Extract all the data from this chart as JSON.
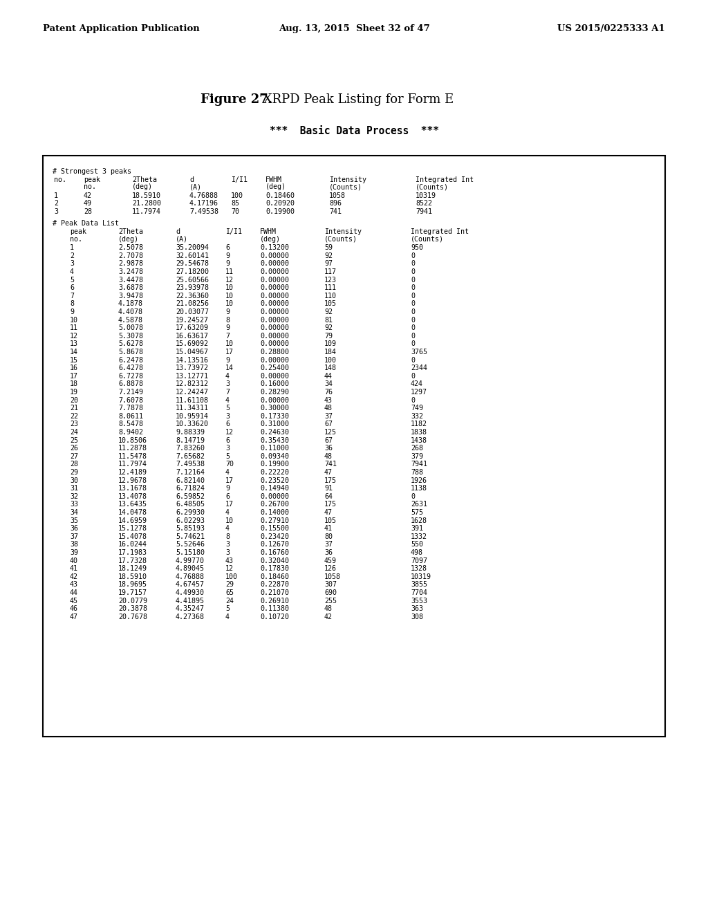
{
  "header_left": "Patent Application Publication",
  "header_mid": "Aug. 13, 2015  Sheet 32 of 47",
  "header_right": "US 2015/0225333 A1",
  "figure_title_bold": "Figure 27.",
  "figure_title_normal": " XRPD Peak Listing for Form E",
  "subtitle": "***  Basic Data Process  ***",
  "strongest_data": [
    [
      "1",
      "42",
      "18.5910",
      "4.76888",
      "100",
      "0.18460",
      "1058",
      "10319"
    ],
    [
      "2",
      "49",
      "21.2800",
      "4.17196",
      "85",
      "0.20920",
      "896",
      "8522"
    ],
    [
      "3",
      "28",
      "11.7974",
      "7.49538",
      "70",
      "0.19900",
      "741",
      "7941"
    ]
  ],
  "peak_data": [
    [
      "1",
      "2.5078",
      "35.20094",
      "6",
      "0.13200",
      "59",
      "950"
    ],
    [
      "2",
      "2.7078",
      "32.60141",
      "9",
      "0.00000",
      "92",
      "0"
    ],
    [
      "3",
      "2.9878",
      "29.54678",
      "9",
      "0.00000",
      "97",
      "0"
    ],
    [
      "4",
      "3.2478",
      "27.18200",
      "11",
      "0.00000",
      "117",
      "0"
    ],
    [
      "5",
      "3.4478",
      "25.60566",
      "12",
      "0.00000",
      "123",
      "0"
    ],
    [
      "6",
      "3.6878",
      "23.93978",
      "10",
      "0.00000",
      "111",
      "0"
    ],
    [
      "7",
      "3.9478",
      "22.36360",
      "10",
      "0.00000",
      "110",
      "0"
    ],
    [
      "8",
      "4.1878",
      "21.08256",
      "10",
      "0.00000",
      "105",
      "0"
    ],
    [
      "9",
      "4.4078",
      "20.03077",
      "9",
      "0.00000",
      "92",
      "0"
    ],
    [
      "10",
      "4.5878",
      "19.24527",
      "8",
      "0.00000",
      "81",
      "0"
    ],
    [
      "11",
      "5.0078",
      "17.63209",
      "9",
      "0.00000",
      "92",
      "0"
    ],
    [
      "12",
      "5.3078",
      "16.63617",
      "7",
      "0.00000",
      "79",
      "0"
    ],
    [
      "13",
      "5.6278",
      "15.69092",
      "10",
      "0.00000",
      "109",
      "0"
    ],
    [
      "14",
      "5.8678",
      "15.04967",
      "17",
      "0.28800",
      "184",
      "3765"
    ],
    [
      "15",
      "6.2478",
      "14.13516",
      "9",
      "0.00000",
      "100",
      "0"
    ],
    [
      "16",
      "6.4278",
      "13.73972",
      "14",
      "0.25400",
      "148",
      "2344"
    ],
    [
      "17",
      "6.7278",
      "13.12771",
      "4",
      "0.00000",
      "44",
      "0"
    ],
    [
      "18",
      "6.8878",
      "12.82312",
      "3",
      "0.16000",
      "34",
      "424"
    ],
    [
      "19",
      "7.2149",
      "12.24247",
      "7",
      "0.28290",
      "76",
      "1297"
    ],
    [
      "20",
      "7.6078",
      "11.61108",
      "4",
      "0.00000",
      "43",
      "0"
    ],
    [
      "21",
      "7.7878",
      "11.34311",
      "5",
      "0.30000",
      "48",
      "749"
    ],
    [
      "22",
      "8.0611",
      "10.95914",
      "3",
      "0.17330",
      "37",
      "332"
    ],
    [
      "23",
      "8.5478",
      "10.33620",
      "6",
      "0.31000",
      "67",
      "1182"
    ],
    [
      "24",
      "8.9402",
      "9.88339",
      "12",
      "0.24630",
      "125",
      "1838"
    ],
    [
      "25",
      "10.8506",
      "8.14719",
      "6",
      "0.35430",
      "67",
      "1438"
    ],
    [
      "26",
      "11.2878",
      "7.83260",
      "3",
      "0.11000",
      "36",
      "268"
    ],
    [
      "27",
      "11.5478",
      "7.65682",
      "5",
      "0.09340",
      "48",
      "379"
    ],
    [
      "28",
      "11.7974",
      "7.49538",
      "70",
      "0.19900",
      "741",
      "7941"
    ],
    [
      "29",
      "12.4189",
      "7.12164",
      "4",
      "0.22220",
      "47",
      "788"
    ],
    [
      "30",
      "12.9678",
      "6.82140",
      "17",
      "0.23520",
      "175",
      "1926"
    ],
    [
      "31",
      "13.1678",
      "6.71824",
      "9",
      "0.14940",
      "91",
      "1138"
    ],
    [
      "32",
      "13.4078",
      "6.59852",
      "6",
      "0.00000",
      "64",
      "0"
    ],
    [
      "33",
      "13.6435",
      "6.48505",
      "17",
      "0.26700",
      "175",
      "2631"
    ],
    [
      "34",
      "14.0478",
      "6.29930",
      "4",
      "0.14000",
      "47",
      "575"
    ],
    [
      "35",
      "14.6959",
      "6.02293",
      "10",
      "0.27910",
      "105",
      "1628"
    ],
    [
      "36",
      "15.1278",
      "5.85193",
      "4",
      "0.15500",
      "41",
      "391"
    ],
    [
      "37",
      "15.4078",
      "5.74621",
      "8",
      "0.23420",
      "80",
      "1332"
    ],
    [
      "38",
      "16.0244",
      "5.52646",
      "3",
      "0.12670",
      "37",
      "550"
    ],
    [
      "39",
      "17.1983",
      "5.15180",
      "3",
      "0.16760",
      "36",
      "498"
    ],
    [
      "40",
      "17.7328",
      "4.99770",
      "43",
      "0.32040",
      "459",
      "7097"
    ],
    [
      "41",
      "18.1249",
      "4.89045",
      "12",
      "0.17830",
      "126",
      "1328"
    ],
    [
      "42",
      "18.5910",
      "4.76888",
      "100",
      "0.18460",
      "1058",
      "10319"
    ],
    [
      "43",
      "18.9695",
      "4.67457",
      "29",
      "0.22870",
      "307",
      "3855"
    ],
    [
      "44",
      "19.7157",
      "4.49930",
      "65",
      "0.21070",
      "690",
      "7704"
    ],
    [
      "45",
      "20.0779",
      "4.41895",
      "24",
      "0.26910",
      "255",
      "3553"
    ],
    [
      "46",
      "20.3878",
      "4.35247",
      "5",
      "0.11380",
      "48",
      "363"
    ],
    [
      "47",
      "20.7678",
      "4.27368",
      "4",
      "0.10720",
      "42",
      "308"
    ]
  ]
}
